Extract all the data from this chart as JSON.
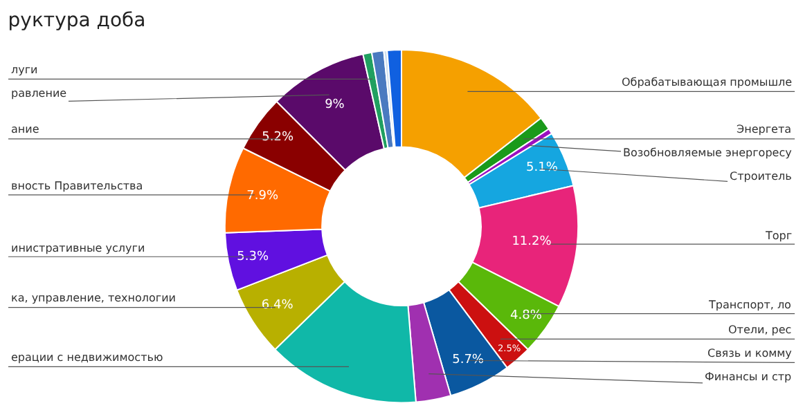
{
  "chart_data": {
    "type": "donut",
    "title": "руктура доба",
    "categories": [
      "Обрабатывающая промышле",
      "Энергета",
      "Возобновляемые энергоресу",
      "Строитель",
      "Торг",
      "Транспорт, ло",
      "Отели, рес",
      "Связь и комму",
      "Финансы и стр",
      "ерации с недвижимостью",
      "ка, управление, технологии",
      "инистративные услуги",
      "вность Правительства",
      "ание",
      "равление",
      "луги",
      null,
      null,
      null
    ],
    "values": [
      14.5,
      1.2,
      0.5,
      5.1,
      11.2,
      4.8,
      2.5,
      5.7,
      3.2,
      14,
      6.4,
      5.3,
      7.9,
      5.2,
      9,
      0.8,
      1.1,
      0.3,
      1.3
    ],
    "colors": [
      "#f5a000",
      "#1a9a1a",
      "#9b10c0",
      "#15a6e0",
      "#e8247a",
      "#5ab80a",
      "#cc1010",
      "#0a58a0",
      "#a030b0",
      "#10b8a8",
      "#b8b000",
      "#6010e0",
      "#ff6a00",
      "#8a0000",
      "#5a0a6a",
      "#20a060",
      "#4a7ac0",
      "#d0e0f0",
      "#1060e0"
    ],
    "value_labels": [
      null,
      null,
      null,
      "5.1%",
      "11.2%",
      "4.8%",
      "2.5%",
      "5.7%",
      null,
      null,
      "6.4%",
      "5.3%",
      "7.9%",
      "5.2%",
      "9%",
      null,
      null,
      null,
      null
    ],
    "legend": false
  }
}
